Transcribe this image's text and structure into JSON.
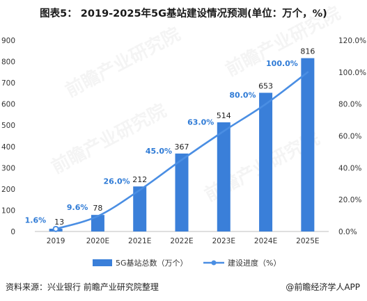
{
  "title": "图表5： 2019-2025年5G基站建设情况预测(单位：万个，%)",
  "source": "资料来源：兴业银行 前瞻产业研究院整理",
  "credit": "@前瞻经济学人APP",
  "watermark": "前瞻产业研究院",
  "chart_data": {
    "type": "bar+line",
    "categories": [
      "2019",
      "2020E",
      "2021E",
      "2022E",
      "2023E",
      "2024E",
      "2025E"
    ],
    "series": [
      {
        "name": "5G基站总数（万个）",
        "kind": "bar",
        "axis": "left",
        "values": [
          13,
          78,
          212,
          367,
          514,
          653,
          816
        ],
        "labels": [
          "13",
          "78",
          "212",
          "367",
          "514",
          "653",
          "816"
        ],
        "color": "#3a7fd9"
      },
      {
        "name": "建设进度（%）",
        "kind": "line",
        "axis": "right",
        "values": [
          1.6,
          9.6,
          26.0,
          45.0,
          63.0,
          80.0,
          100.0
        ],
        "labels": [
          "1.6%",
          "9.6%",
          "26.0%",
          "45.0%",
          "63.0%",
          "80.0%",
          "100.0%"
        ],
        "color": "#4a8ee3"
      }
    ],
    "y_left": {
      "min": 0,
      "max": 900,
      "ticks": [
        "0",
        "100",
        "200",
        "300",
        "400",
        "500",
        "600",
        "700",
        "800",
        "900"
      ]
    },
    "y_right": {
      "min": 0,
      "max": 120,
      "ticks": [
        "0.0%",
        "20.0%",
        "40.0%",
        "60.0%",
        "80.0%",
        "100.0%",
        "120.0%"
      ]
    },
    "grid": false,
    "legend_position": "bottom",
    "label_color": "#2f7bd6"
  }
}
